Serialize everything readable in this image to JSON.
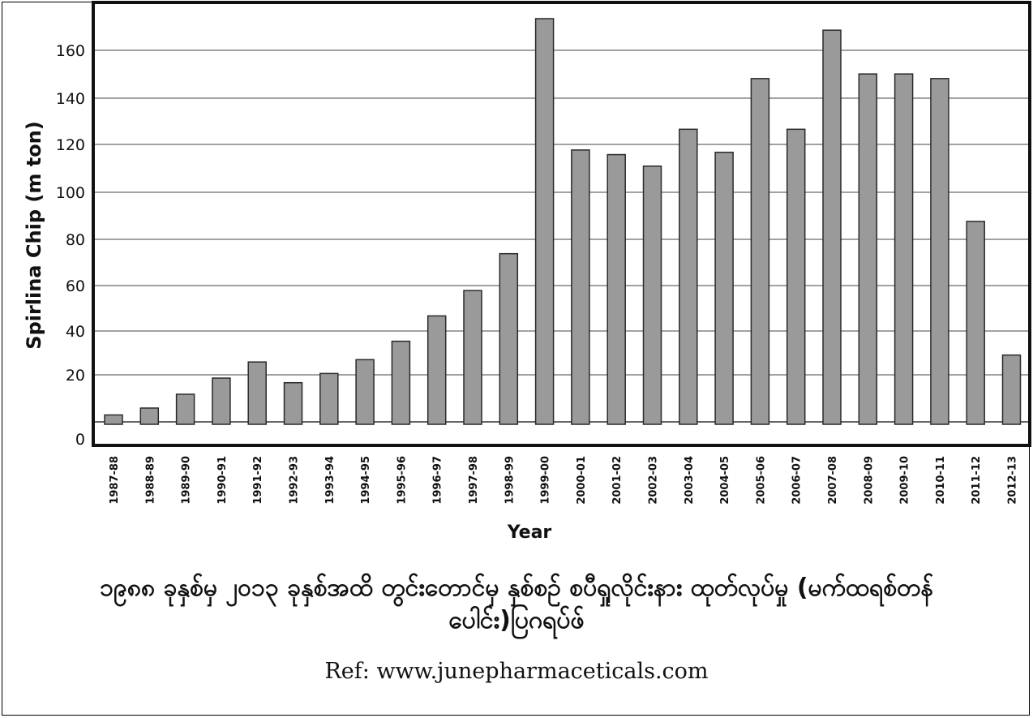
{
  "chart_data": {
    "type": "bar",
    "xlabel": "Year",
    "ylabel": "Spirlina Chip (m ton)",
    "ylim": [
      0,
      180
    ],
    "yticks": [
      "0",
      "20",
      "40",
      "60",
      "80",
      "100",
      "120",
      "140",
      "160"
    ],
    "grid": true,
    "categories": [
      "1987-88",
      "1988-89",
      "1989-90",
      "1990-91",
      "1991-92",
      "1992-93",
      "1993-94",
      "1994-95",
      "1995-96",
      "1996-97",
      "1997-98",
      "1998-99",
      "1999-00",
      "2000-01",
      "2001-02",
      "2002-03",
      "2003-04",
      "2004-05",
      "2005-06",
      "2006-07",
      "2007-08",
      "2008-09",
      "2009-10",
      "2010-11",
      "2011-12",
      "2012-13"
    ],
    "values": [
      3,
      6,
      12,
      19,
      26,
      17,
      21,
      27,
      35,
      46,
      57,
      73,
      175,
      118,
      116,
      111,
      127,
      117,
      149,
      127,
      170,
      151,
      151,
      149,
      87,
      29
    ],
    "bar_color": "#9a9a9a",
    "bar_edge_color": "#2a2a2a"
  },
  "caption": {
    "title": "၁၉၈၈ ခုနှစ်မှ ၂၀၁၃ ခုနှစ်အထိ တွင်းတောင်မှ နှစ်စဉ် စပီရှုလိုင်းနား ထုတ်လုပ်မှု (မက်ထရစ်တန်ပေါင်း)ပြဂရပ်ဖ်",
    "ref": "Ref: www.junepharmaceticals.com"
  }
}
